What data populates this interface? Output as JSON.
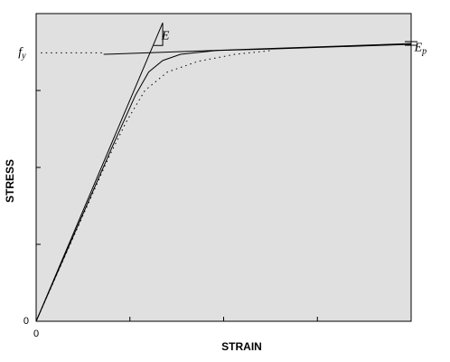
{
  "chart_data": {
    "type": "line",
    "xlabel": "STRAIN",
    "ylabel": "STRESS",
    "xlim": [
      0,
      4
    ],
    "ylim": [
      0,
      4
    ],
    "xticks": [
      0,
      {
        "value": 1,
        "label": null
      },
      {
        "value": 2,
        "label": null
      },
      {
        "value": 3,
        "label": null
      }
    ],
    "yticks": [
      0,
      {
        "value": 1,
        "label": null
      },
      {
        "value": 2,
        "label": null
      },
      {
        "value": 3,
        "label": null
      }
    ],
    "background": "#e0e0e0",
    "series": [
      {
        "style": "solid",
        "x": [
          0,
          1.35
        ],
        "values": [
          0,
          3.88
        ]
      },
      {
        "style": "solid",
        "x": [
          0.72,
          4.0
        ],
        "values": [
          3.47,
          3.61
        ]
      },
      {
        "style": "dotted",
        "x": [
          0.05,
          0.72
        ],
        "values": [
          3.49,
          3.49
        ]
      },
      {
        "style": "solid",
        "x": [
          0,
          0.82,
          1.06,
          1.2,
          1.35,
          1.54,
          1.93,
          2.51,
          4.0
        ],
        "values": [
          0,
          2.29,
          2.94,
          3.24,
          3.39,
          3.47,
          3.52,
          3.54,
          3.6
        ]
      },
      {
        "style": "dotted",
        "x": [
          0,
          0.77,
          0.96,
          1.16,
          1.4,
          1.73,
          2.12,
          2.51
        ],
        "values": [
          0,
          2.12,
          2.59,
          3.0,
          3.24,
          3.38,
          3.47,
          3.52
        ]
      }
    ],
    "annotations": [
      {
        "text": "f",
        "sub": "y",
        "x": -0.15,
        "y": 3.49
      },
      {
        "text": "E",
        "x": 1.38,
        "y": 3.7
      },
      {
        "text": "E",
        "sub": "p",
        "x": 4.1,
        "y": 3.55
      }
    ]
  }
}
